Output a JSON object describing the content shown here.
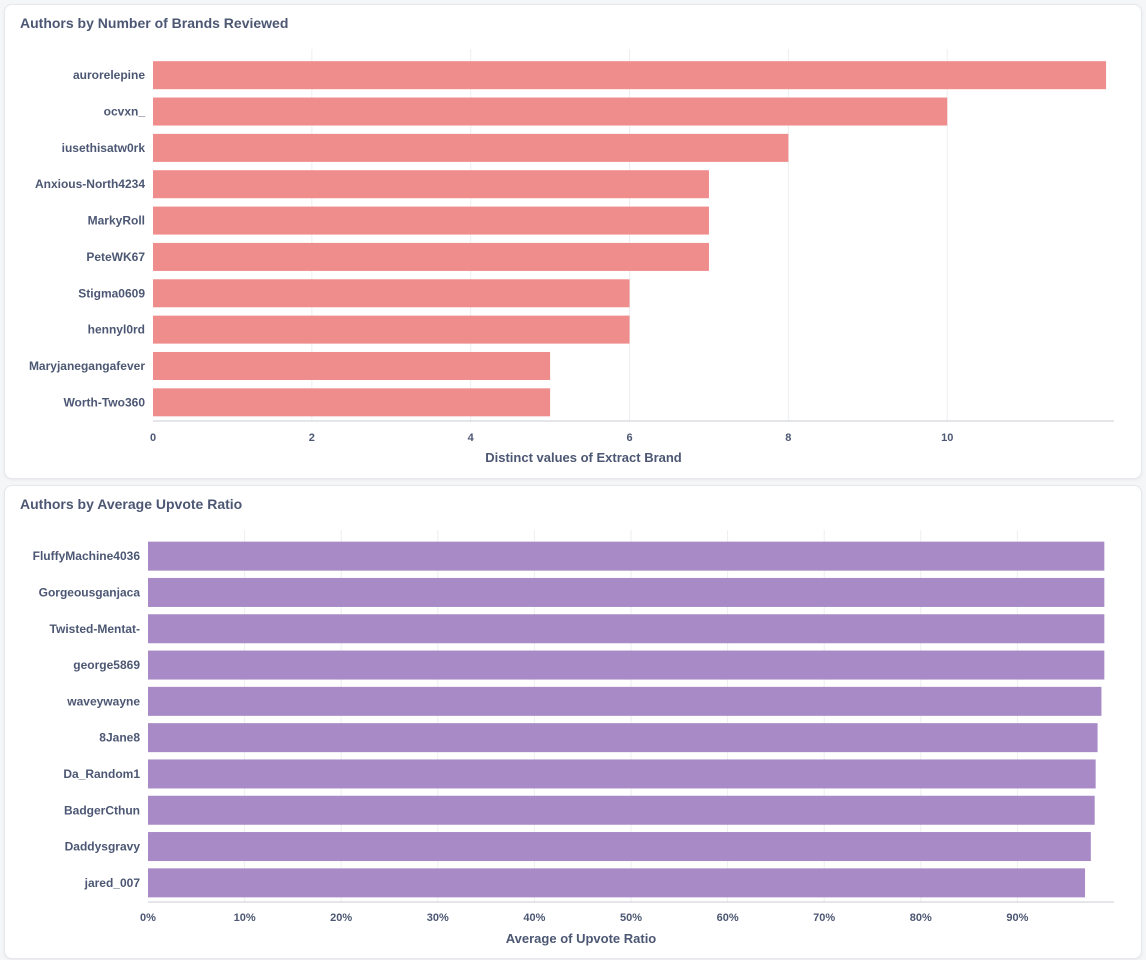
{
  "chart_data": [
    {
      "type": "bar",
      "orientation": "horizontal",
      "title": "Authors by Number of Brands Reviewed",
      "categories": [
        "aurorelepine",
        "ocvxn_",
        "iusethisatw0rk",
        "Anxious-North4234",
        "MarkyRoll",
        "PeteWK67",
        "Stigma0609",
        "hennyl0rd",
        "Maryjanegangafever",
        "Worth-Two360"
      ],
      "values": [
        12,
        10,
        8,
        7,
        7,
        7,
        6,
        6,
        5,
        5
      ],
      "xlabel": "Distinct values of Extract Brand",
      "ylabel": "",
      "xlim": [
        0,
        12.1
      ],
      "ticks": [
        0,
        2,
        4,
        6,
        8,
        10
      ],
      "tick_labels": [
        "0",
        "2",
        "4",
        "6",
        "8",
        "10"
      ],
      "color": "#ef8c8c",
      "grid": true
    },
    {
      "type": "bar",
      "orientation": "horizontal",
      "title": "Authors by Average Upvote Ratio",
      "categories": [
        "FluffyMachine4036",
        "Gorgeousganjaca",
        "Twisted-Mentat-",
        "george5869",
        "waveywayne",
        "8Jane8",
        "Da_Random1",
        "BadgerCthun",
        "Daddysgravy",
        "jared_007"
      ],
      "values": [
        0.99,
        0.99,
        0.99,
        0.99,
        0.987,
        0.983,
        0.981,
        0.98,
        0.976,
        0.97
      ],
      "xlabel": "Average of Upvote Ratio",
      "ylabel": "",
      "xlim": [
        0,
        1.0
      ],
      "ticks": [
        0,
        0.1,
        0.2,
        0.3,
        0.4,
        0.5,
        0.6,
        0.7,
        0.8,
        0.9
      ],
      "tick_labels": [
        "0%",
        "10%",
        "20%",
        "30%",
        "40%",
        "50%",
        "60%",
        "70%",
        "80%",
        "90%"
      ],
      "color": "#a78ac6",
      "grid": true
    }
  ]
}
